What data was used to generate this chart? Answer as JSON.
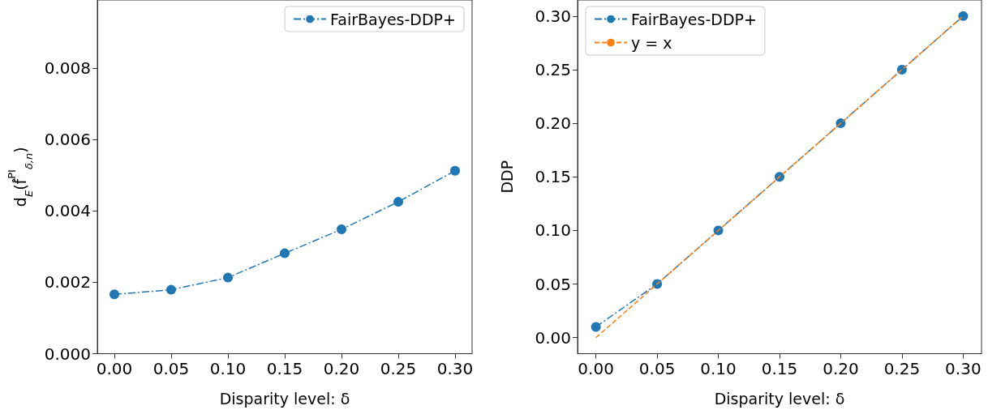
{
  "chart_data": [
    {
      "type": "line",
      "xlabel": "Disparity level: δ",
      "ylabel": "d$_{E}$(f̂$^{PI}$$_{δ,n}$)",
      "x": [
        0,
        0.05,
        0.1,
        0.15,
        0.2,
        0.25,
        0.3
      ],
      "series": [
        {
          "name": "FairBayes-DDP+",
          "color": "#1f77b4",
          "line_style": "dashdot",
          "marker": "circle",
          "values": [
            0.00166,
            0.00179,
            0.00213,
            0.00281,
            0.00348,
            0.00425,
            0.00512
          ]
        }
      ],
      "xlim": [
        -0.015,
        0.315
      ],
      "xticks": [
        {
          "value": 0,
          "label": "0.00"
        },
        {
          "value": 0.05,
          "label": "0.05"
        },
        {
          "value": 0.1,
          "label": "0.10"
        },
        {
          "value": 0.15,
          "label": "0.15"
        },
        {
          "value": 0.2,
          "label": "0.20"
        },
        {
          "value": 0.25,
          "label": "0.25"
        },
        {
          "value": 0.3,
          "label": "0.30"
        }
      ],
      "ylim": [
        0,
        0.0099
      ],
      "yticks": [
        {
          "value": 0,
          "label": "0.000"
        },
        {
          "value": 0.002,
          "label": "0.002"
        },
        {
          "value": 0.004,
          "label": "0.004"
        },
        {
          "value": 0.006,
          "label": "0.006"
        },
        {
          "value": 0.008,
          "label": "0.008"
        }
      ],
      "grid": false,
      "legend": "top right"
    },
    {
      "type": "line",
      "xlabel": "Disparity level: δ",
      "ylabel": "DDP",
      "x": [
        0,
        0.05,
        0.1,
        0.15,
        0.2,
        0.25,
        0.3
      ],
      "series": [
        {
          "name": "FairBayes-DDP+",
          "color": "#1f77b4",
          "line_style": "dashdot",
          "marker": "circle",
          "values": [
            0.01,
            0.05,
            0.1,
            0.15,
            0.2,
            0.25,
            0.3
          ]
        },
        {
          "name": "y = x",
          "color": "#ff7f0e",
          "line_style": "dashed",
          "marker": "none",
          "x": [
            0,
            0.3
          ],
          "values": [
            0,
            0.3
          ]
        }
      ],
      "xlim": [
        -0.015,
        0.315
      ],
      "xticks": [
        {
          "value": 0,
          "label": "0.00"
        },
        {
          "value": 0.05,
          "label": "0.05"
        },
        {
          "value": 0.1,
          "label": "0.10"
        },
        {
          "value": 0.15,
          "label": "0.15"
        },
        {
          "value": 0.2,
          "label": "0.20"
        },
        {
          "value": 0.25,
          "label": "0.25"
        },
        {
          "value": 0.3,
          "label": "0.30"
        }
      ],
      "ylim": [
        -0.015,
        0.315
      ],
      "yticks": [
        {
          "value": 0,
          "label": "0.00"
        },
        {
          "value": 0.05,
          "label": "0.05"
        },
        {
          "value": 0.1,
          "label": "0.10"
        },
        {
          "value": 0.15,
          "label": "0.15"
        },
        {
          "value": 0.2,
          "label": "0.20"
        },
        {
          "value": 0.25,
          "label": "0.25"
        },
        {
          "value": 0.3,
          "label": "0.30"
        }
      ],
      "grid": false,
      "legend": "top left"
    }
  ]
}
